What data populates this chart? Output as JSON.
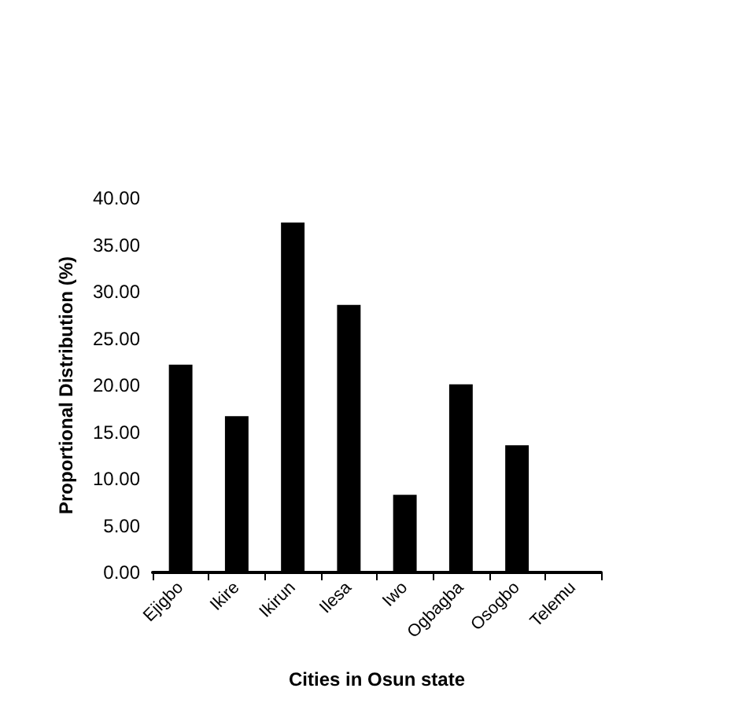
{
  "chart_data": {
    "type": "bar",
    "xlabel": "Cities in Osun state",
    "ylabel": "Proportional Distribution (%)",
    "categories": [
      "Ejigbo",
      "Ikire",
      "Ikirun",
      "Ilesa",
      "Iwo",
      "Ogbagba",
      "Osogbo",
      "Telemu"
    ],
    "values": [
      22.2,
      16.7,
      37.4,
      28.6,
      8.3,
      20.1,
      13.6,
      0
    ],
    "color": "#000000",
    "ylim": [
      0,
      40
    ],
    "yticks": [
      {
        "value": 0,
        "label": "0.00"
      },
      {
        "value": 5,
        "label": "5.00"
      },
      {
        "value": 10,
        "label": "10.00"
      },
      {
        "value": 15,
        "label": "15.00"
      },
      {
        "value": 20,
        "label": "20.00"
      },
      {
        "value": 25,
        "label": "25.00"
      },
      {
        "value": 30,
        "label": "30.00"
      },
      {
        "value": 35,
        "label": "35.00"
      },
      {
        "value": 40,
        "label": "40.00"
      }
    ],
    "grid": false
  }
}
